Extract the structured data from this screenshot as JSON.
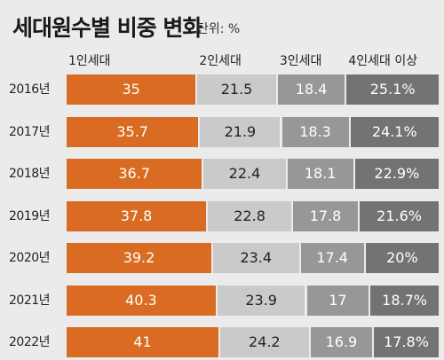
{
  "header": {
    "title": "세대원수별 비중 변화",
    "unit": "단위: %"
  },
  "colors": {
    "background": "#ebebeb",
    "series": [
      "#d96c22",
      "#cacaca",
      "#979797",
      "#737373"
    ]
  },
  "chart_data": {
    "type": "bar",
    "orientation": "horizontal",
    "stacked": true,
    "categories": [
      "2016년",
      "2017년",
      "2018년",
      "2019년",
      "2020년",
      "2021년",
      "2022년"
    ],
    "series": [
      {
        "name": "1인세대",
        "values": [
          35,
          35.7,
          36.7,
          37.8,
          39.2,
          40.3,
          41
        ],
        "labels": [
          "35",
          "35.7",
          "36.7",
          "37.8",
          "39.2",
          "40.3",
          "41"
        ]
      },
      {
        "name": "2인세대",
        "values": [
          21.5,
          21.9,
          22.4,
          22.8,
          23.4,
          23.9,
          24.2
        ],
        "labels": [
          "21.5",
          "21.9",
          "22.4",
          "22.8",
          "23.4",
          "23.9",
          "24.2"
        ]
      },
      {
        "name": "3인세대",
        "values": [
          18.4,
          18.3,
          18.1,
          17.8,
          17.4,
          17,
          16.9
        ],
        "labels": [
          "18.4",
          "18.3",
          "18.1",
          "17.8",
          "17.4",
          "17",
          "16.9"
        ]
      },
      {
        "name": "4인세대 이상",
        "values": [
          25.1,
          24.1,
          22.9,
          21.6,
          20,
          18.7,
          17.8
        ],
        "labels": [
          "25.1%",
          "24.1%",
          "22.9%",
          "21.6%",
          "20%",
          "18.7%",
          "17.8%"
        ]
      }
    ],
    "legend_position": "top",
    "grid": false
  }
}
